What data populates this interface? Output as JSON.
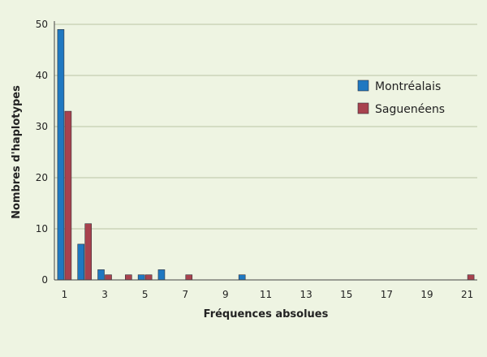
{
  "chart_data": {
    "type": "bar",
    "xlabel": "Fréquences absolues",
    "ylabel": "Nombres d'haplotypes",
    "ylim": [
      0,
      50
    ],
    "yticks": [
      0,
      10,
      20,
      30,
      40,
      50
    ],
    "xlim": [
      0.5,
      21.5
    ],
    "xticks": [
      1,
      3,
      5,
      7,
      9,
      11,
      13,
      15,
      17,
      19,
      21
    ],
    "grid": "horizontal",
    "legend_position": "right",
    "series": [
      {
        "name": "Montréalais",
        "color": "#1f78c1",
        "points": [
          [
            1,
            49
          ],
          [
            2,
            7
          ],
          [
            3,
            2
          ],
          [
            5,
            1
          ],
          [
            6,
            2
          ],
          [
            10,
            1
          ]
        ]
      },
      {
        "name": "Saguenéens",
        "color": "#a8424e",
        "points": [
          [
            1,
            33
          ],
          [
            2,
            11
          ],
          [
            3,
            1
          ],
          [
            4,
            1
          ],
          [
            5,
            1
          ],
          [
            7,
            1
          ],
          [
            21,
            1
          ]
        ]
      }
    ]
  }
}
